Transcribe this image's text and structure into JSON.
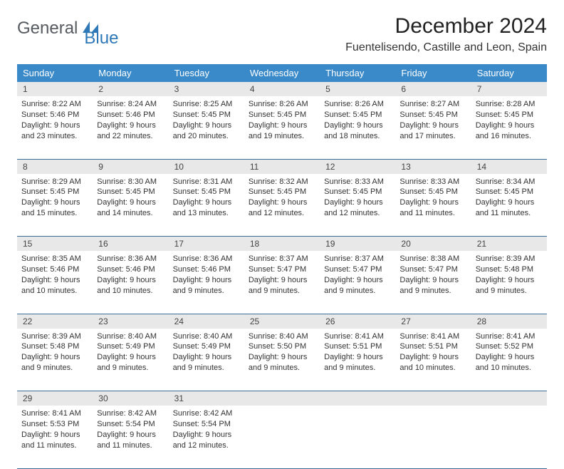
{
  "brand": {
    "word1": "General",
    "word2": "Blue"
  },
  "title": "December 2024",
  "location": "Fuentelisendo, Castille and Leon, Spain",
  "header_bg": "#3a89c9",
  "header_fg": "#ffffff",
  "daynum_bg": "#e8e8e8",
  "rule_color": "#3a6d98",
  "logo_color": "#2f78b7",
  "weekdays": [
    "Sunday",
    "Monday",
    "Tuesday",
    "Wednesday",
    "Thursday",
    "Friday",
    "Saturday"
  ],
  "weeks": [
    [
      {
        "n": "1",
        "sunrise": "Sunrise: 8:22 AM",
        "sunset": "Sunset: 5:46 PM",
        "d1": "Daylight: 9 hours",
        "d2": "and 23 minutes."
      },
      {
        "n": "2",
        "sunrise": "Sunrise: 8:24 AM",
        "sunset": "Sunset: 5:46 PM",
        "d1": "Daylight: 9 hours",
        "d2": "and 22 minutes."
      },
      {
        "n": "3",
        "sunrise": "Sunrise: 8:25 AM",
        "sunset": "Sunset: 5:45 PM",
        "d1": "Daylight: 9 hours",
        "d2": "and 20 minutes."
      },
      {
        "n": "4",
        "sunrise": "Sunrise: 8:26 AM",
        "sunset": "Sunset: 5:45 PM",
        "d1": "Daylight: 9 hours",
        "d2": "and 19 minutes."
      },
      {
        "n": "5",
        "sunrise": "Sunrise: 8:26 AM",
        "sunset": "Sunset: 5:45 PM",
        "d1": "Daylight: 9 hours",
        "d2": "and 18 minutes."
      },
      {
        "n": "6",
        "sunrise": "Sunrise: 8:27 AM",
        "sunset": "Sunset: 5:45 PM",
        "d1": "Daylight: 9 hours",
        "d2": "and 17 minutes."
      },
      {
        "n": "7",
        "sunrise": "Sunrise: 8:28 AM",
        "sunset": "Sunset: 5:45 PM",
        "d1": "Daylight: 9 hours",
        "d2": "and 16 minutes."
      }
    ],
    [
      {
        "n": "8",
        "sunrise": "Sunrise: 8:29 AM",
        "sunset": "Sunset: 5:45 PM",
        "d1": "Daylight: 9 hours",
        "d2": "and 15 minutes."
      },
      {
        "n": "9",
        "sunrise": "Sunrise: 8:30 AM",
        "sunset": "Sunset: 5:45 PM",
        "d1": "Daylight: 9 hours",
        "d2": "and 14 minutes."
      },
      {
        "n": "10",
        "sunrise": "Sunrise: 8:31 AM",
        "sunset": "Sunset: 5:45 PM",
        "d1": "Daylight: 9 hours",
        "d2": "and 13 minutes."
      },
      {
        "n": "11",
        "sunrise": "Sunrise: 8:32 AM",
        "sunset": "Sunset: 5:45 PM",
        "d1": "Daylight: 9 hours",
        "d2": "and 12 minutes."
      },
      {
        "n": "12",
        "sunrise": "Sunrise: 8:33 AM",
        "sunset": "Sunset: 5:45 PM",
        "d1": "Daylight: 9 hours",
        "d2": "and 12 minutes."
      },
      {
        "n": "13",
        "sunrise": "Sunrise: 8:33 AM",
        "sunset": "Sunset: 5:45 PM",
        "d1": "Daylight: 9 hours",
        "d2": "and 11 minutes."
      },
      {
        "n": "14",
        "sunrise": "Sunrise: 8:34 AM",
        "sunset": "Sunset: 5:45 PM",
        "d1": "Daylight: 9 hours",
        "d2": "and 11 minutes."
      }
    ],
    [
      {
        "n": "15",
        "sunrise": "Sunrise: 8:35 AM",
        "sunset": "Sunset: 5:46 PM",
        "d1": "Daylight: 9 hours",
        "d2": "and 10 minutes."
      },
      {
        "n": "16",
        "sunrise": "Sunrise: 8:36 AM",
        "sunset": "Sunset: 5:46 PM",
        "d1": "Daylight: 9 hours",
        "d2": "and 10 minutes."
      },
      {
        "n": "17",
        "sunrise": "Sunrise: 8:36 AM",
        "sunset": "Sunset: 5:46 PM",
        "d1": "Daylight: 9 hours",
        "d2": "and 9 minutes."
      },
      {
        "n": "18",
        "sunrise": "Sunrise: 8:37 AM",
        "sunset": "Sunset: 5:47 PM",
        "d1": "Daylight: 9 hours",
        "d2": "and 9 minutes."
      },
      {
        "n": "19",
        "sunrise": "Sunrise: 8:37 AM",
        "sunset": "Sunset: 5:47 PM",
        "d1": "Daylight: 9 hours",
        "d2": "and 9 minutes."
      },
      {
        "n": "20",
        "sunrise": "Sunrise: 8:38 AM",
        "sunset": "Sunset: 5:47 PM",
        "d1": "Daylight: 9 hours",
        "d2": "and 9 minutes."
      },
      {
        "n": "21",
        "sunrise": "Sunrise: 8:39 AM",
        "sunset": "Sunset: 5:48 PM",
        "d1": "Daylight: 9 hours",
        "d2": "and 9 minutes."
      }
    ],
    [
      {
        "n": "22",
        "sunrise": "Sunrise: 8:39 AM",
        "sunset": "Sunset: 5:48 PM",
        "d1": "Daylight: 9 hours",
        "d2": "and 9 minutes."
      },
      {
        "n": "23",
        "sunrise": "Sunrise: 8:40 AM",
        "sunset": "Sunset: 5:49 PM",
        "d1": "Daylight: 9 hours",
        "d2": "and 9 minutes."
      },
      {
        "n": "24",
        "sunrise": "Sunrise: 8:40 AM",
        "sunset": "Sunset: 5:49 PM",
        "d1": "Daylight: 9 hours",
        "d2": "and 9 minutes."
      },
      {
        "n": "25",
        "sunrise": "Sunrise: 8:40 AM",
        "sunset": "Sunset: 5:50 PM",
        "d1": "Daylight: 9 hours",
        "d2": "and 9 minutes."
      },
      {
        "n": "26",
        "sunrise": "Sunrise: 8:41 AM",
        "sunset": "Sunset: 5:51 PM",
        "d1": "Daylight: 9 hours",
        "d2": "and 9 minutes."
      },
      {
        "n": "27",
        "sunrise": "Sunrise: 8:41 AM",
        "sunset": "Sunset: 5:51 PM",
        "d1": "Daylight: 9 hours",
        "d2": "and 10 minutes."
      },
      {
        "n": "28",
        "sunrise": "Sunrise: 8:41 AM",
        "sunset": "Sunset: 5:52 PM",
        "d1": "Daylight: 9 hours",
        "d2": "and 10 minutes."
      }
    ],
    [
      {
        "n": "29",
        "sunrise": "Sunrise: 8:41 AM",
        "sunset": "Sunset: 5:53 PM",
        "d1": "Daylight: 9 hours",
        "d2": "and 11 minutes."
      },
      {
        "n": "30",
        "sunrise": "Sunrise: 8:42 AM",
        "sunset": "Sunset: 5:54 PM",
        "d1": "Daylight: 9 hours",
        "d2": "and 11 minutes."
      },
      {
        "n": "31",
        "sunrise": "Sunrise: 8:42 AM",
        "sunset": "Sunset: 5:54 PM",
        "d1": "Daylight: 9 hours",
        "d2": "and 12 minutes."
      },
      null,
      null,
      null,
      null
    ]
  ]
}
